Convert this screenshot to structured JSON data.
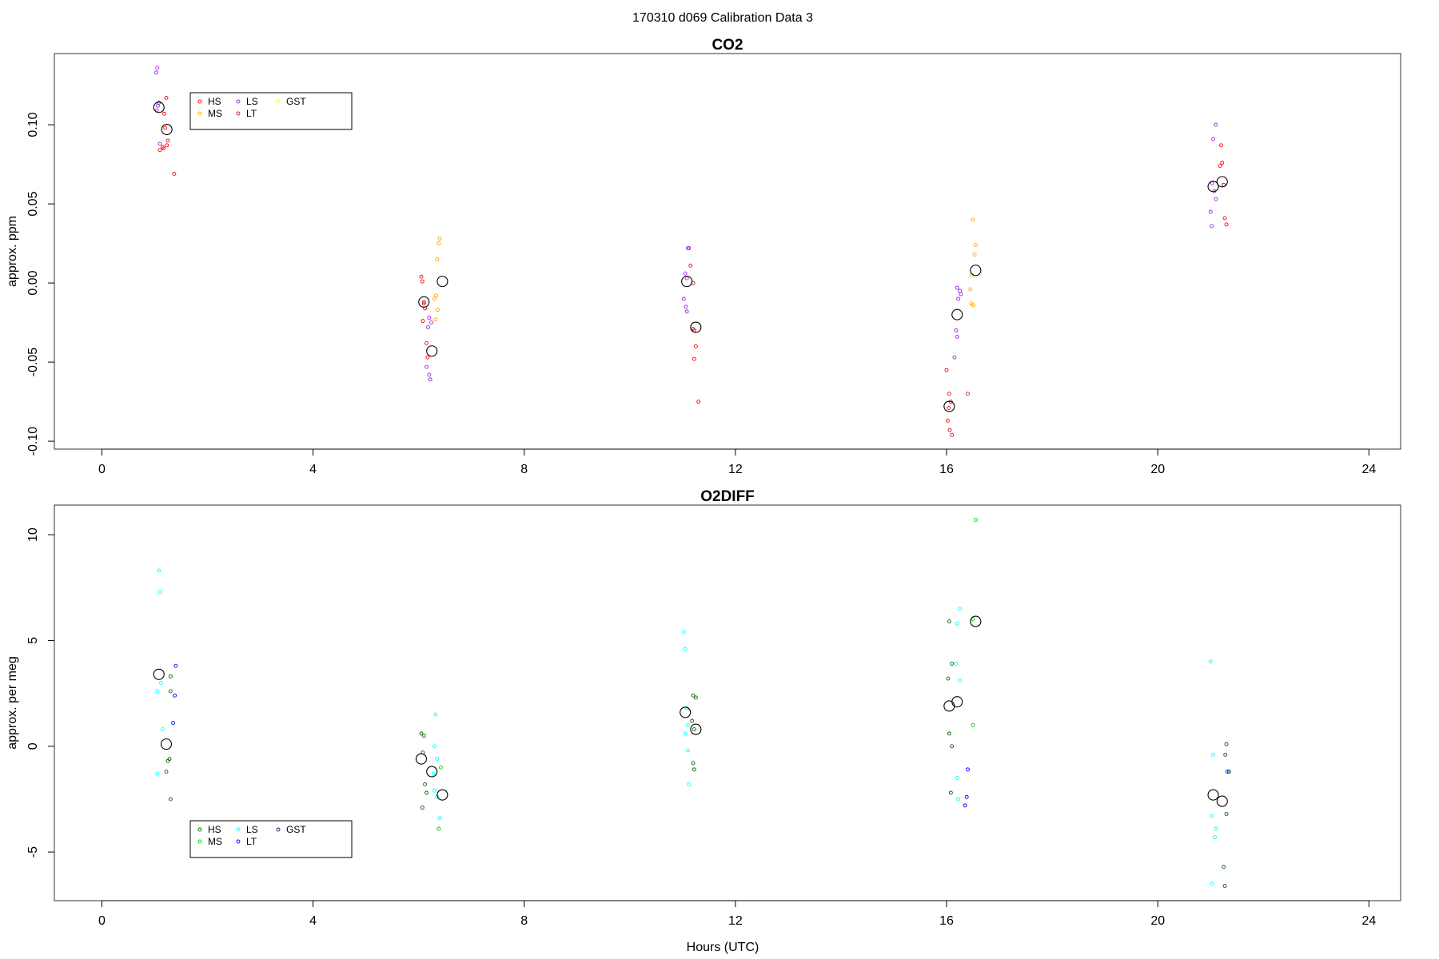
{
  "figure_title": "170310   d069   Calibration Data 3",
  "xlabel": "Hours (UTC)",
  "chart_data": [
    {
      "type": "scatter",
      "title": "CO2",
      "ylabel": "approx. ppm",
      "xlim": [
        -0.9,
        24.6
      ],
      "ylim": [
        -0.105,
        0.145
      ],
      "xticks": [
        0,
        4,
        8,
        12,
        16,
        20,
        24
      ],
      "yticks": [
        -0.1,
        -0.05,
        0.0,
        0.05,
        0.1
      ],
      "ytick_labels": [
        "-0.10",
        "-0.05",
        "0.00",
        "0.05",
        "0.10"
      ],
      "grid": false,
      "legend": {
        "placement": "top-left",
        "entries": [
          {
            "label": "HS",
            "color": "#ff0000"
          },
          {
            "label": "LS",
            "color": "#a020f0"
          },
          {
            "label": "GST",
            "color": "#ffff00"
          },
          {
            "label": "MS",
            "color": "#ffa500"
          },
          {
            "label": "LT",
            "color": "#b22222"
          }
        ]
      },
      "series": [
        {
          "name": "HS",
          "color": "#ff0000",
          "points": [
            [
              1.22,
              0.117
            ],
            [
              1.18,
              0.107
            ],
            [
              1.2,
              0.098
            ],
            [
              1.25,
              0.09
            ],
            [
              1.23,
              0.087
            ],
            [
              1.15,
              0.086
            ],
            [
              1.17,
              0.085
            ],
            [
              1.1,
              0.084
            ],
            [
              1.37,
              0.069
            ],
            [
              6.05,
              0.004
            ],
            [
              6.07,
              0.001
            ],
            [
              6.1,
              -0.013
            ],
            [
              6.12,
              -0.016
            ],
            [
              6.08,
              -0.024
            ],
            [
              6.15,
              -0.038
            ],
            [
              6.17,
              -0.047
            ],
            [
              11.15,
              0.011
            ],
            [
              11.2,
              -0.029
            ],
            [
              11.25,
              -0.04
            ],
            [
              11.22,
              -0.048
            ],
            [
              11.3,
              -0.075
            ],
            [
              16.0,
              -0.055
            ],
            [
              16.05,
              -0.07
            ],
            [
              16.08,
              -0.075
            ],
            [
              16.04,
              -0.079
            ],
            [
              16.02,
              -0.087
            ],
            [
              16.06,
              -0.093
            ],
            [
              16.1,
              -0.096
            ],
            [
              21.2,
              0.087
            ],
            [
              21.22,
              0.076
            ],
            [
              21.18,
              0.074
            ],
            [
              21.25,
              0.062
            ],
            [
              21.27,
              0.041
            ],
            [
              21.3,
              0.037
            ]
          ]
        },
        {
          "name": "MS",
          "color": "#ffa500",
          "points": [
            [
              6.4,
              0.028
            ],
            [
              6.38,
              0.025
            ],
            [
              6.35,
              0.015
            ],
            [
              6.33,
              -0.008
            ],
            [
              6.3,
              -0.01
            ],
            [
              6.36,
              -0.017
            ],
            [
              6.32,
              -0.023
            ],
            [
              16.5,
              0.04
            ],
            [
              16.55,
              0.024
            ],
            [
              16.53,
              0.018
            ],
            [
              16.48,
              0.005
            ],
            [
              16.45,
              -0.004
            ],
            [
              16.47,
              -0.013
            ],
            [
              16.5,
              -0.014
            ]
          ]
        },
        {
          "name": "LS",
          "color": "#a020f0",
          "points": [
            [
              1.05,
              0.136
            ],
            [
              1.03,
              0.133
            ],
            [
              1.08,
              0.114
            ],
            [
              1.06,
              0.112
            ],
            [
              1.04,
              0.109
            ],
            [
              1.1,
              0.088
            ],
            [
              6.2,
              -0.022
            ],
            [
              6.24,
              -0.025
            ],
            [
              6.18,
              -0.028
            ],
            [
              6.15,
              -0.053
            ],
            [
              6.2,
              -0.058
            ],
            [
              6.22,
              -0.061
            ],
            [
              11.1,
              0.022
            ],
            [
              11.12,
              0.022
            ],
            [
              11.05,
              0.006
            ],
            [
              11.08,
              0.003
            ],
            [
              11.02,
              -0.01
            ],
            [
              11.06,
              -0.015
            ],
            [
              11.08,
              -0.018
            ],
            [
              16.2,
              -0.003
            ],
            [
              16.25,
              -0.005
            ],
            [
              16.27,
              -0.007
            ],
            [
              16.22,
              -0.01
            ],
            [
              16.18,
              -0.03
            ],
            [
              16.2,
              -0.034
            ],
            [
              16.15,
              -0.047
            ],
            [
              21.1,
              0.1
            ],
            [
              21.05,
              0.091
            ],
            [
              21.03,
              0.063
            ],
            [
              21.07,
              0.058
            ],
            [
              21.1,
              0.053
            ],
            [
              21.0,
              0.045
            ],
            [
              21.02,
              0.036
            ]
          ]
        },
        {
          "name": "LT",
          "color": "#b22222",
          "points": [
            [
              6.1,
              -0.012
            ],
            [
              11.2,
              0.0
            ],
            [
              11.22,
              -0.03
            ],
            [
              16.4,
              -0.07
            ],
            [
              21.25,
              0.062
            ]
          ]
        },
        {
          "name": "GST",
          "color": "#ffff00",
          "points": []
        },
        {
          "name": "mean",
          "color": "#000000",
          "marker": "large-open-circle",
          "points": [
            [
              1.08,
              0.111
            ],
            [
              1.23,
              0.097
            ],
            [
              6.1,
              -0.012
            ],
            [
              6.25,
              -0.043
            ],
            [
              6.45,
              0.001
            ],
            [
              11.08,
              0.001
            ],
            [
              11.25,
              -0.028
            ],
            [
              16.05,
              -0.078
            ],
            [
              16.2,
              -0.02
            ],
            [
              16.55,
              0.008
            ],
            [
              21.05,
              0.061
            ],
            [
              21.22,
              0.064
            ]
          ]
        }
      ]
    },
    {
      "type": "scatter",
      "title": "O2DIFF",
      "ylabel": "approx. per meg",
      "xlim": [
        -0.9,
        24.6
      ],
      "ylim": [
        -7.3,
        11.4
      ],
      "xticks": [
        0,
        4,
        8,
        12,
        16,
        20,
        24
      ],
      "yticks": [
        -5,
        0,
        5,
        10
      ],
      "ytick_labels": [
        "-5",
        "0",
        "5",
        "10"
      ],
      "grid": false,
      "legend": {
        "placement": "bottom-left",
        "entries": [
          {
            "label": "HS",
            "color": "#006400"
          },
          {
            "label": "LS",
            "color": "#00ffff"
          },
          {
            "label": "GST",
            "color": "#191970"
          },
          {
            "label": "MS",
            "color": "#00cd00"
          },
          {
            "label": "LT",
            "color": "#0000ff"
          }
        ]
      },
      "series": [
        {
          "name": "HS",
          "color": "#006400",
          "points": [
            [
              1.3,
              3.3
            ],
            [
              1.3,
              2.6
            ],
            [
              1.28,
              -0.6
            ],
            [
              1.25,
              -0.7
            ],
            [
              1.22,
              -1.2
            ],
            [
              1.3,
              -2.5
            ],
            [
              6.05,
              0.6
            ],
            [
              6.1,
              0.5
            ],
            [
              6.08,
              -0.3
            ],
            [
              6.12,
              -1.8
            ],
            [
              6.15,
              -2.2
            ],
            [
              6.07,
              -2.9
            ],
            [
              11.2,
              2.4
            ],
            [
              11.25,
              2.3
            ],
            [
              11.18,
              1.2
            ],
            [
              11.22,
              0.8
            ],
            [
              11.2,
              -0.8
            ],
            [
              11.22,
              -1.1
            ],
            [
              16.05,
              5.9
            ],
            [
              16.1,
              3.9
            ],
            [
              16.03,
              3.2
            ],
            [
              16.05,
              0.6
            ],
            [
              16.1,
              0.0
            ],
            [
              16.08,
              -2.2
            ],
            [
              21.3,
              0.1
            ],
            [
              21.28,
              -0.4
            ],
            [
              21.35,
              -1.2
            ],
            [
              21.3,
              -3.2
            ],
            [
              21.25,
              -5.7
            ],
            [
              21.27,
              -6.6
            ]
          ]
        },
        {
          "name": "MS",
          "color": "#00cd00",
          "points": [
            [
              6.42,
              -1.0
            ],
            [
              6.38,
              -3.9
            ],
            [
              16.55,
              10.7
            ],
            [
              16.5,
              6.0
            ],
            [
              16.5,
              1.0
            ]
          ]
        },
        {
          "name": "LS",
          "color": "#00ffff",
          "points": [
            [
              1.08,
              8.3
            ],
            [
              1.1,
              7.3
            ],
            [
              1.12,
              3.0
            ],
            [
              1.05,
              2.6
            ],
            [
              1.15,
              0.8
            ],
            [
              1.05,
              -1.3
            ],
            [
              6.32,
              1.5
            ],
            [
              6.3,
              0.0
            ],
            [
              6.35,
              -0.6
            ],
            [
              6.28,
              -1.3
            ],
            [
              6.3,
              -2.1
            ],
            [
              6.35,
              -2.4
            ],
            [
              6.4,
              -3.4
            ],
            [
              11.02,
              5.4
            ],
            [
              11.05,
              4.6
            ],
            [
              11.08,
              1.8
            ],
            [
              11.1,
              1.0
            ],
            [
              11.05,
              0.6
            ],
            [
              11.1,
              -0.2
            ],
            [
              11.12,
              -1.8
            ],
            [
              16.25,
              6.5
            ],
            [
              16.2,
              5.8
            ],
            [
              16.18,
              3.9
            ],
            [
              16.25,
              3.1
            ],
            [
              16.2,
              -1.5
            ],
            [
              16.22,
              -2.5
            ],
            [
              21.0,
              4.0
            ],
            [
              21.05,
              -0.4
            ],
            [
              21.02,
              -3.3
            ],
            [
              21.1,
              -3.9
            ],
            [
              21.08,
              -4.3
            ],
            [
              21.03,
              -6.5
            ]
          ]
        },
        {
          "name": "LT",
          "color": "#0000ff",
          "points": [
            [
              1.4,
              3.8
            ],
            [
              1.38,
              2.4
            ],
            [
              1.35,
              1.1
            ],
            [
              16.4,
              -1.1
            ],
            [
              16.38,
              -2.4
            ],
            [
              16.35,
              -2.8
            ],
            [
              21.32,
              -1.2
            ]
          ]
        },
        {
          "name": "GST",
          "color": "#191970",
          "points": []
        },
        {
          "name": "mean",
          "color": "#000000",
          "marker": "large-open-circle",
          "points": [
            [
              1.08,
              3.4
            ],
            [
              1.22,
              0.1
            ],
            [
              6.05,
              -0.6
            ],
            [
              6.25,
              -1.2
            ],
            [
              6.45,
              -2.3
            ],
            [
              11.05,
              1.6
            ],
            [
              11.25,
              0.8
            ],
            [
              16.05,
              1.9
            ],
            [
              16.2,
              2.1
            ],
            [
              16.55,
              5.9
            ],
            [
              21.05,
              -2.3
            ],
            [
              21.22,
              -2.6
            ]
          ]
        }
      ]
    }
  ]
}
